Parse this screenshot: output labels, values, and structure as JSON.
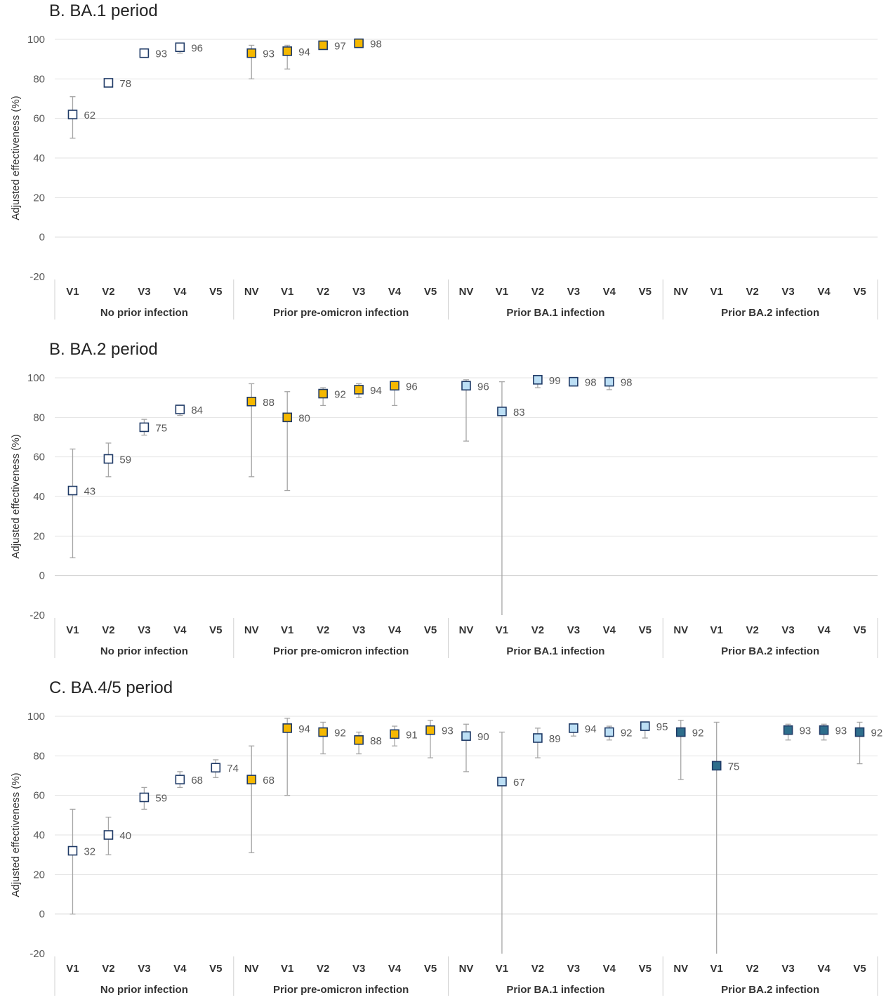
{
  "colors": {
    "none": "#ffffff",
    "pre_omicron": "#f5b800",
    "ba1": "#bcdff5",
    "ba2": "#2e6e8c",
    "marker_edge": "#1f3a66",
    "errorbar": "#a6a6a6",
    "grid": "#e3e3e3",
    "axis_text": "#595959"
  },
  "chart_data": [
    {
      "type": "scatter",
      "title": "B. BA.1 period",
      "ylabel": "Adjusted effectiveness (%)",
      "ylim": [
        -20,
        100
      ],
      "yticks": [
        -20,
        0,
        20,
        40,
        60,
        80,
        100
      ],
      "grid": true,
      "groups": [
        {
          "label": "No prior infection",
          "categories": [
            "V1",
            "V2",
            "V3",
            "V4",
            "V5"
          ]
        },
        {
          "label": "Prior pre-omicron infection",
          "categories": [
            "NV",
            "V1",
            "V2",
            "V3",
            "V4",
            "V5"
          ]
        },
        {
          "label": "Prior BA.1 infection",
          "categories": [
            "NV",
            "V1",
            "V2",
            "V3",
            "V4",
            "V5"
          ]
        },
        {
          "label": "Prior BA.2 infection",
          "categories": [
            "NV",
            "V1",
            "V2",
            "V3",
            "V4",
            "V5"
          ]
        }
      ],
      "points": [
        {
          "group": 0,
          "cat": "V1",
          "value": 62,
          "lo": 50,
          "hi": 71,
          "label": "62",
          "fill": "none"
        },
        {
          "group": 0,
          "cat": "V2",
          "value": 78,
          "lo": 77,
          "hi": 78,
          "label": "78",
          "fill": "none"
        },
        {
          "group": 0,
          "cat": "V3",
          "value": 93,
          "lo": 91,
          "hi": 93,
          "label": "93",
          "fill": "none"
        },
        {
          "group": 0,
          "cat": "V4",
          "value": 96,
          "lo": 93,
          "hi": 97,
          "label": "96",
          "fill": "none"
        },
        {
          "group": 1,
          "cat": "NV",
          "value": 93,
          "lo": 80,
          "hi": 97,
          "label": "93",
          "fill": "pre_omicron"
        },
        {
          "group": 1,
          "cat": "V1",
          "value": 94,
          "lo": 85,
          "hi": 97,
          "label": "94",
          "fill": "pre_omicron"
        },
        {
          "group": 1,
          "cat": "V2",
          "value": 97,
          "lo": 96,
          "hi": 98,
          "label": "97",
          "fill": "pre_omicron"
        },
        {
          "group": 1,
          "cat": "V3",
          "value": 98,
          "lo": 97,
          "hi": 99,
          "label": "98",
          "fill": "pre_omicron"
        }
      ]
    },
    {
      "type": "scatter",
      "title": "B. BA.2 period",
      "ylabel": "Adjusted effectiveness (%)",
      "ylim": [
        -20,
        100
      ],
      "yticks": [
        -20,
        0,
        20,
        40,
        60,
        80,
        100
      ],
      "grid": true,
      "groups": [
        {
          "label": "No prior infection",
          "categories": [
            "V1",
            "V2",
            "V3",
            "V4",
            "V5"
          ]
        },
        {
          "label": "Prior pre-omicron infection",
          "categories": [
            "NV",
            "V1",
            "V2",
            "V3",
            "V4",
            "V5"
          ]
        },
        {
          "label": "Prior BA.1 infection",
          "categories": [
            "NV",
            "V1",
            "V2",
            "V3",
            "V4",
            "V5"
          ]
        },
        {
          "label": "Prior BA.2 infection",
          "categories": [
            "NV",
            "V1",
            "V2",
            "V3",
            "V4",
            "V5"
          ]
        }
      ],
      "points": [
        {
          "group": 0,
          "cat": "V1",
          "value": 43,
          "lo": 9,
          "hi": 64,
          "label": "43",
          "fill": "none"
        },
        {
          "group": 0,
          "cat": "V2",
          "value": 59,
          "lo": 50,
          "hi": 67,
          "label": "59",
          "fill": "none"
        },
        {
          "group": 0,
          "cat": "V3",
          "value": 75,
          "lo": 71,
          "hi": 79,
          "label": "75",
          "fill": "none"
        },
        {
          "group": 0,
          "cat": "V4",
          "value": 84,
          "lo": 81,
          "hi": 86,
          "label": "84",
          "fill": "none"
        },
        {
          "group": 1,
          "cat": "NV",
          "value": 88,
          "lo": 50,
          "hi": 97,
          "label": "88",
          "fill": "pre_omicron"
        },
        {
          "group": 1,
          "cat": "V1",
          "value": 80,
          "lo": 43,
          "hi": 93,
          "label": "80",
          "fill": "pre_omicron"
        },
        {
          "group": 1,
          "cat": "V2",
          "value": 92,
          "lo": 86,
          "hi": 95,
          "label": "92",
          "fill": "pre_omicron"
        },
        {
          "group": 1,
          "cat": "V3",
          "value": 94,
          "lo": 90,
          "hi": 97,
          "label": "94",
          "fill": "pre_omicron"
        },
        {
          "group": 1,
          "cat": "V4",
          "value": 96,
          "lo": 86,
          "hi": 98,
          "label": "96",
          "fill": "pre_omicron"
        },
        {
          "group": 2,
          "cat": "NV",
          "value": 96,
          "lo": 68,
          "hi": 99,
          "label": "96",
          "fill": "ba1"
        },
        {
          "group": 2,
          "cat": "V1",
          "value": 83,
          "lo": -20,
          "hi": 98,
          "label": "83",
          "fill": "ba1"
        },
        {
          "group": 2,
          "cat": "V2",
          "value": 99,
          "lo": 95,
          "hi": 100,
          "label": "99",
          "fill": "ba1"
        },
        {
          "group": 2,
          "cat": "V3",
          "value": 98,
          "lo": 96,
          "hi": 99,
          "label": "98",
          "fill": "ba1"
        },
        {
          "group": 2,
          "cat": "V4",
          "value": 98,
          "lo": 94,
          "hi": 99,
          "label": "98",
          "fill": "ba1"
        }
      ]
    },
    {
      "type": "scatter",
      "title": "C. BA.4/5 period",
      "ylabel": "Adjusted effectiveness (%)",
      "ylim": [
        -20,
        100
      ],
      "yticks": [
        -20,
        0,
        20,
        40,
        60,
        80,
        100
      ],
      "grid": true,
      "groups": [
        {
          "label": "No prior infection",
          "categories": [
            "V1",
            "V2",
            "V3",
            "V4",
            "V5"
          ]
        },
        {
          "label": "Prior pre-omicron infection",
          "categories": [
            "NV",
            "V1",
            "V2",
            "V3",
            "V4",
            "V5"
          ]
        },
        {
          "label": "Prior BA.1 infection",
          "categories": [
            "NV",
            "V1",
            "V2",
            "V3",
            "V4",
            "V5"
          ]
        },
        {
          "label": "Prior BA.2 infection",
          "categories": [
            "NV",
            "V1",
            "V2",
            "V3",
            "V4",
            "V5"
          ]
        }
      ],
      "points": [
        {
          "group": 0,
          "cat": "V1",
          "value": 32,
          "lo": 0,
          "hi": 53,
          "label": "32",
          "fill": "none"
        },
        {
          "group": 0,
          "cat": "V2",
          "value": 40,
          "lo": 30,
          "hi": 49,
          "label": "40",
          "fill": "none"
        },
        {
          "group": 0,
          "cat": "V3",
          "value": 59,
          "lo": 53,
          "hi": 64,
          "label": "59",
          "fill": "none"
        },
        {
          "group": 0,
          "cat": "V4",
          "value": 68,
          "lo": 64,
          "hi": 72,
          "label": "68",
          "fill": "none"
        },
        {
          "group": 0,
          "cat": "V5",
          "value": 74,
          "lo": 69,
          "hi": 78,
          "label": "74",
          "fill": "none"
        },
        {
          "group": 1,
          "cat": "NV",
          "value": 68,
          "lo": 31,
          "hi": 85,
          "label": "68",
          "fill": "pre_omicron"
        },
        {
          "group": 1,
          "cat": "V1",
          "value": 94,
          "lo": 60,
          "hi": 99,
          "label": "94",
          "fill": "pre_omicron"
        },
        {
          "group": 1,
          "cat": "V2",
          "value": 92,
          "lo": 81,
          "hi": 97,
          "label": "92",
          "fill": "pre_omicron"
        },
        {
          "group": 1,
          "cat": "V3",
          "value": 88,
          "lo": 81,
          "hi": 92,
          "label": "88",
          "fill": "pre_omicron"
        },
        {
          "group": 1,
          "cat": "V4",
          "value": 91,
          "lo": 85,
          "hi": 95,
          "label": "91",
          "fill": "pre_omicron"
        },
        {
          "group": 1,
          "cat": "V5",
          "value": 93,
          "lo": 79,
          "hi": 98,
          "label": "93",
          "fill": "pre_omicron"
        },
        {
          "group": 2,
          "cat": "NV",
          "value": 90,
          "lo": 72,
          "hi": 96,
          "label": "90",
          "fill": "ba1"
        },
        {
          "group": 2,
          "cat": "V1",
          "value": 67,
          "lo": -20,
          "hi": 92,
          "label": "67",
          "fill": "ba1"
        },
        {
          "group": 2,
          "cat": "V2",
          "value": 89,
          "lo": 79,
          "hi": 94,
          "label": "89",
          "fill": "ba1"
        },
        {
          "group": 2,
          "cat": "V3",
          "value": 94,
          "lo": 90,
          "hi": 96,
          "label": "94",
          "fill": "ba1"
        },
        {
          "group": 2,
          "cat": "V4",
          "value": 92,
          "lo": 88,
          "hi": 95,
          "label": "92",
          "fill": "ba1"
        },
        {
          "group": 2,
          "cat": "V5",
          "value": 95,
          "lo": 89,
          "hi": 97,
          "label": "95",
          "fill": "ba1"
        },
        {
          "group": 3,
          "cat": "NV",
          "value": 92,
          "lo": 68,
          "hi": 98,
          "label": "92",
          "fill": "ba2"
        },
        {
          "group": 3,
          "cat": "V1",
          "value": 75,
          "lo": -20,
          "hi": 97,
          "label": "75",
          "fill": "ba2"
        },
        {
          "group": 3,
          "cat": "V3",
          "value": 93,
          "lo": 88,
          "hi": 96,
          "label": "93",
          "fill": "ba2"
        },
        {
          "group": 3,
          "cat": "V4",
          "value": 93,
          "lo": 88,
          "hi": 96,
          "label": "93",
          "fill": "ba2"
        },
        {
          "group": 3,
          "cat": "V5",
          "value": 92,
          "lo": 76,
          "hi": 97,
          "label": "92",
          "fill": "ba2"
        }
      ]
    }
  ]
}
